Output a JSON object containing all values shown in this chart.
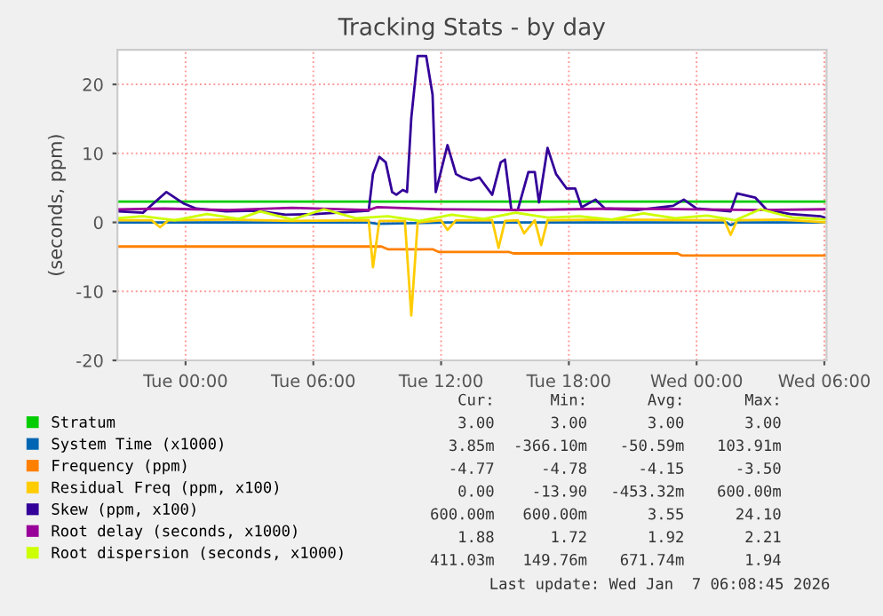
{
  "chart_data": {
    "type": "line",
    "title": "Tracking Stats - by day",
    "ylabel": "(seconds, ppm)",
    "xlim": [
      "2026-01-05T20:48",
      "2026-01-07T06:06"
    ],
    "ylim": [
      -20,
      25
    ],
    "xticks": [
      {
        "value": "2026-01-06T00:00",
        "label": "Tue 00:00"
      },
      {
        "value": "2026-01-06T06:00",
        "label": "Tue 06:00"
      },
      {
        "value": "2026-01-06T12:00",
        "label": "Tue 12:00"
      },
      {
        "value": "2026-01-06T18:00",
        "label": "Tue 18:00"
      },
      {
        "value": "2026-01-07T00:00",
        "label": "Wed 00:00"
      },
      {
        "value": "2026-01-07T06:00",
        "label": "Wed 06:00"
      }
    ],
    "yticks": [
      -20,
      -10,
      0,
      10,
      20
    ],
    "grid": true,
    "legend": "bottom",
    "marker": "none",
    "line_style": "solid",
    "series": [
      {
        "name": "Stratum",
        "color": "#00cc00",
        "x": [
          "2026-01-05T20:48",
          "2026-01-07T06:06"
        ],
        "values": [
          3,
          3
        ]
      },
      {
        "name": "System Time (x1000)",
        "color": "#0066b3",
        "x": [
          "2026-01-05T20:48",
          "2026-01-06T08:36",
          "2026-01-06T09:00",
          "2026-01-06T12:18",
          "2026-01-06T14:42",
          "2026-01-07T01:24",
          "2026-01-07T01:36",
          "2026-01-07T01:54",
          "2026-01-07T06:06"
        ],
        "values": [
          0,
          0,
          -0.2,
          0,
          0,
          0,
          -0.4,
          0,
          0
        ]
      },
      {
        "name": "Frequency (ppm)",
        "color": "#ff8000",
        "x": [
          "2026-01-05T20:48",
          "2026-01-06T09:12",
          "2026-01-06T09:30",
          "2026-01-06T11:36",
          "2026-01-06T11:54",
          "2026-01-06T15:12",
          "2026-01-06T15:24",
          "2026-01-06T23:06",
          "2026-01-06T23:18",
          "2026-01-07T06:06"
        ],
        "values": [
          -3.5,
          -3.5,
          -3.9,
          -3.9,
          -4.3,
          -4.3,
          -4.5,
          -4.5,
          -4.8,
          -4.8
        ]
      },
      {
        "name": "Residual Freq (ppm, x100)",
        "color": "#ffcc00",
        "x": [
          "2026-01-05T20:48",
          "2026-01-05T22:24",
          "2026-01-05T22:48",
          "2026-01-05T23:12",
          "2026-01-06T02:00",
          "2026-01-06T05:00",
          "2026-01-06T08:36",
          "2026-01-06T08:48",
          "2026-01-06T09:06",
          "2026-01-06T10:18",
          "2026-01-06T10:36",
          "2026-01-06T10:54",
          "2026-01-06T12:00",
          "2026-01-06T12:18",
          "2026-01-06T12:42",
          "2026-01-06T14:24",
          "2026-01-06T14:42",
          "2026-01-06T15:00",
          "2026-01-06T15:36",
          "2026-01-06T15:54",
          "2026-01-06T16:24",
          "2026-01-06T16:42",
          "2026-01-06T17:00",
          "2026-01-06T20:00",
          "2026-01-07T01:18",
          "2026-01-07T01:36",
          "2026-01-07T01:54",
          "2026-01-07T04:00",
          "2026-01-07T06:06"
        ],
        "values": [
          0.3,
          0.3,
          -0.7,
          0.3,
          0.4,
          0.2,
          0.3,
          -6.5,
          0.2,
          0.2,
          -13.5,
          0.0,
          0.3,
          -1.1,
          0.3,
          0.3,
          -3.7,
          0.2,
          0.3,
          -1.6,
          0.3,
          -3.3,
          0.3,
          0.4,
          0.3,
          -1.8,
          0.3,
          0.4,
          0.0
        ]
      },
      {
        "name": "Skew (ppm, x100)",
        "color": "#330099",
        "x": [
          "2026-01-05T20:54",
          "2026-01-05T22:00",
          "2026-01-05T23:06",
          "2026-01-05T23:56",
          "2026-01-06T00:30",
          "2026-01-06T01:54",
          "2026-01-06T03:18",
          "2026-01-06T04:42",
          "2026-01-06T06:06",
          "2026-01-06T08:36",
          "2026-01-06T08:48",
          "2026-01-06T09:06",
          "2026-01-06T09:24",
          "2026-01-06T09:42",
          "2026-01-06T09:54",
          "2026-01-06T10:12",
          "2026-01-06T10:24",
          "2026-01-06T10:36",
          "2026-01-06T10:54",
          "2026-01-06T11:18",
          "2026-01-06T11:36",
          "2026-01-06T11:45",
          "2026-01-06T12:18",
          "2026-01-06T12:42",
          "2026-01-06T13:00",
          "2026-01-06T13:24",
          "2026-01-06T13:48",
          "2026-01-06T14:24",
          "2026-01-06T14:48",
          "2026-01-06T15:00",
          "2026-01-06T15:18",
          "2026-01-06T15:36",
          "2026-01-06T16:06",
          "2026-01-06T16:24",
          "2026-01-06T16:36",
          "2026-01-06T17:00",
          "2026-01-06T17:24",
          "2026-01-06T17:54",
          "2026-01-06T18:18",
          "2026-01-06T18:36",
          "2026-01-06T19:15",
          "2026-01-06T19:42",
          "2026-01-06T21:12",
          "2026-01-06T22:54",
          "2026-01-06T23:24",
          "2026-01-07T00:00",
          "2026-01-07T01:36",
          "2026-01-07T01:54",
          "2026-01-07T02:45",
          "2026-01-07T03:18",
          "2026-01-07T04:24",
          "2026-01-07T05:48",
          "2026-01-07T06:06"
        ],
        "values": [
          1.6,
          1.4,
          4.4,
          2.7,
          2.0,
          1.6,
          1.7,
          1.1,
          1.2,
          1.7,
          7.0,
          9.5,
          8.7,
          4.4,
          4.0,
          4.7,
          4.4,
          15.1,
          24.1,
          24.1,
          18.5,
          4.4,
          11.2,
          7.0,
          6.5,
          6.1,
          6.5,
          4.0,
          8.7,
          9.1,
          1.8,
          1.8,
          7.3,
          7.3,
          2.9,
          10.8,
          7.0,
          4.9,
          4.9,
          2.2,
          3.3,
          2.0,
          1.8,
          2.4,
          3.3,
          2.0,
          1.6,
          4.2,
          3.6,
          1.8,
          1.2,
          0.9,
          0.6
        ]
      },
      {
        "name": "Root delay (seconds, x1000)",
        "color": "#990099",
        "x": [
          "2026-01-05T20:48",
          "2026-01-05T23:00",
          "2026-01-06T02:00",
          "2026-01-06T05:00",
          "2026-01-06T08:36",
          "2026-01-06T09:00",
          "2026-01-06T12:00",
          "2026-01-06T16:00",
          "2026-01-06T20:00",
          "2026-01-07T00:00",
          "2026-01-07T03:00",
          "2026-01-07T06:06"
        ],
        "values": [
          1.9,
          2.0,
          1.8,
          2.1,
          1.8,
          2.2,
          1.9,
          1.8,
          2.0,
          1.9,
          1.8,
          1.9
        ]
      },
      {
        "name": "Root dispersion (seconds, x1000)",
        "color": "#ccff00",
        "x": [
          "2026-01-05T20:48",
          "2026-01-05T22:00",
          "2026-01-05T23:30",
          "2026-01-06T01:00",
          "2026-01-06T02:30",
          "2026-01-06T03:30",
          "2026-01-06T05:00",
          "2026-01-06T06:30",
          "2026-01-06T08:00",
          "2026-01-06T09:30",
          "2026-01-06T11:00",
          "2026-01-06T12:30",
          "2026-01-06T14:00",
          "2026-01-06T15:30",
          "2026-01-06T17:00",
          "2026-01-06T18:30",
          "2026-01-06T20:00",
          "2026-01-06T21:30",
          "2026-01-06T23:00",
          "2026-01-07T00:30",
          "2026-01-07T01:48",
          "2026-01-07T03:00",
          "2026-01-07T04:30",
          "2026-01-07T06:06"
        ],
        "values": [
          0.6,
          0.9,
          0.3,
          1.2,
          0.5,
          1.6,
          0.4,
          1.9,
          0.6,
          0.9,
          0.2,
          1.1,
          0.5,
          1.4,
          0.7,
          0.9,
          0.4,
          1.3,
          0.6,
          1.0,
          0.3,
          1.9,
          0.7,
          0.4
        ]
      }
    ],
    "annotations": [
      "Cur:",
      "Min:",
      "Avg:",
      "Max:",
      "3.00",
      "3.00",
      "3.00",
      "3.00",
      "3.85m",
      "-366.10m",
      "-50.59m",
      "103.91m",
      "-4.77",
      "-4.78",
      "-4.15",
      "-3.50",
      "0.00",
      "-13.90",
      "-453.32m",
      "600.00m",
      "600.00m",
      "600.00m",
      "3.55",
      "24.10",
      "1.88",
      "1.72",
      "1.92",
      "2.21",
      "411.03m",
      "149.76m",
      "671.74m",
      "1.94",
      "Last update: Wed Jan  7 06:08:45 2026"
    ]
  }
}
